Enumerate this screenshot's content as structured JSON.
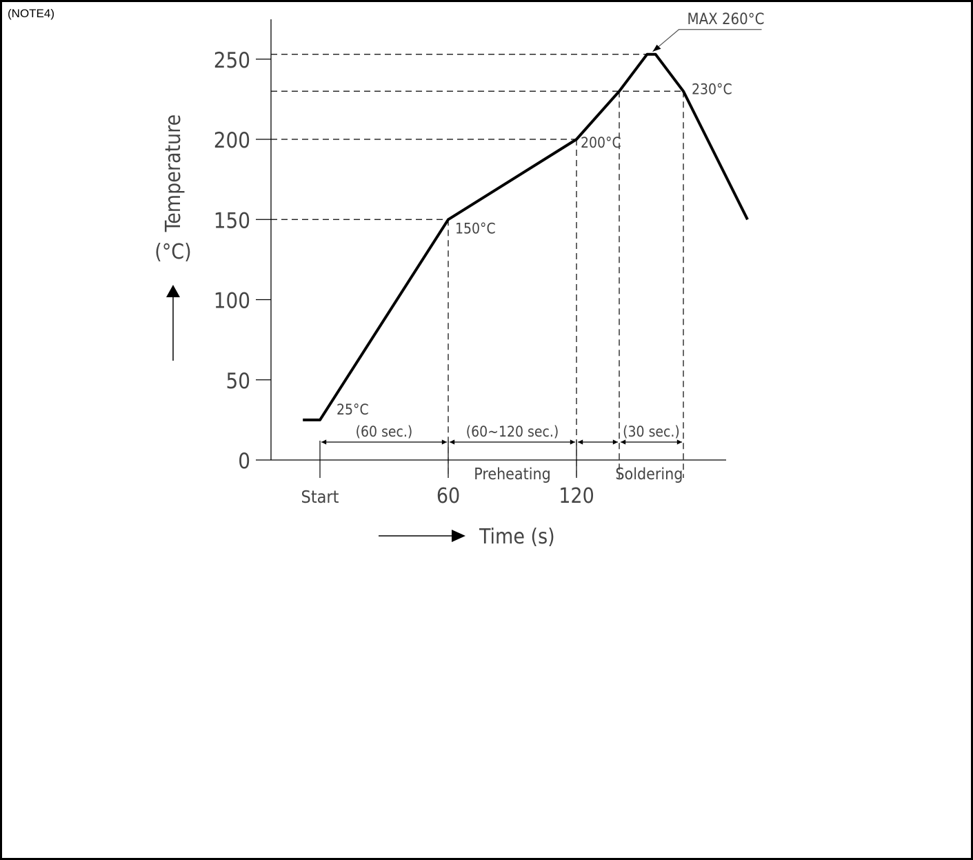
{
  "note": "(NOTE4)",
  "chart_data": {
    "type": "line",
    "title": "",
    "ylabel": "Temperature",
    "yunit": "(°C)",
    "xlabel": "Time (s)",
    "ylim": [
      0,
      270
    ],
    "yticks": [
      0,
      50,
      100,
      150,
      200,
      250
    ],
    "xtick_labels": [
      "Start",
      "60",
      "120"
    ],
    "series": [
      {
        "points": [
          {
            "x": -8,
            "y": 25
          },
          {
            "x": 0,
            "y": 25
          },
          {
            "x": 60,
            "y": 150
          },
          {
            "x": 120,
            "y": 200
          },
          {
            "x": 140,
            "y": 230
          },
          {
            "x": 153,
            "y": 253
          },
          {
            "x": 157,
            "y": 253
          },
          {
            "x": 170,
            "y": 230
          },
          {
            "x": 200,
            "y": 150
          }
        ]
      }
    ],
    "point_labels": [
      {
        "x": 0,
        "y": 25,
        "text": "25°C"
      },
      {
        "x": 60,
        "y": 150,
        "text": "150°C"
      },
      {
        "x": 120,
        "y": 200,
        "text": "200°C"
      },
      {
        "x": 170,
        "y": 230,
        "text": "230°C"
      }
    ],
    "peak_label": "MAX 260°C",
    "reference_lines_y": [
      253,
      230,
      200,
      150
    ],
    "reference_lines_x": [
      60,
      120,
      140,
      170
    ],
    "durations": [
      {
        "from": 0,
        "to": 60,
        "label": "(60 sec.)"
      },
      {
        "from": 60,
        "to": 120,
        "label": "(60~120 sec.)"
      },
      {
        "from": 120,
        "to": 140,
        "label": ""
      },
      {
        "from": 140,
        "to": 170,
        "label": "(30 sec.)"
      }
    ],
    "zones": [
      {
        "center": 90,
        "label": "Preheating"
      },
      {
        "center": 154,
        "label": "Soldering"
      }
    ]
  }
}
